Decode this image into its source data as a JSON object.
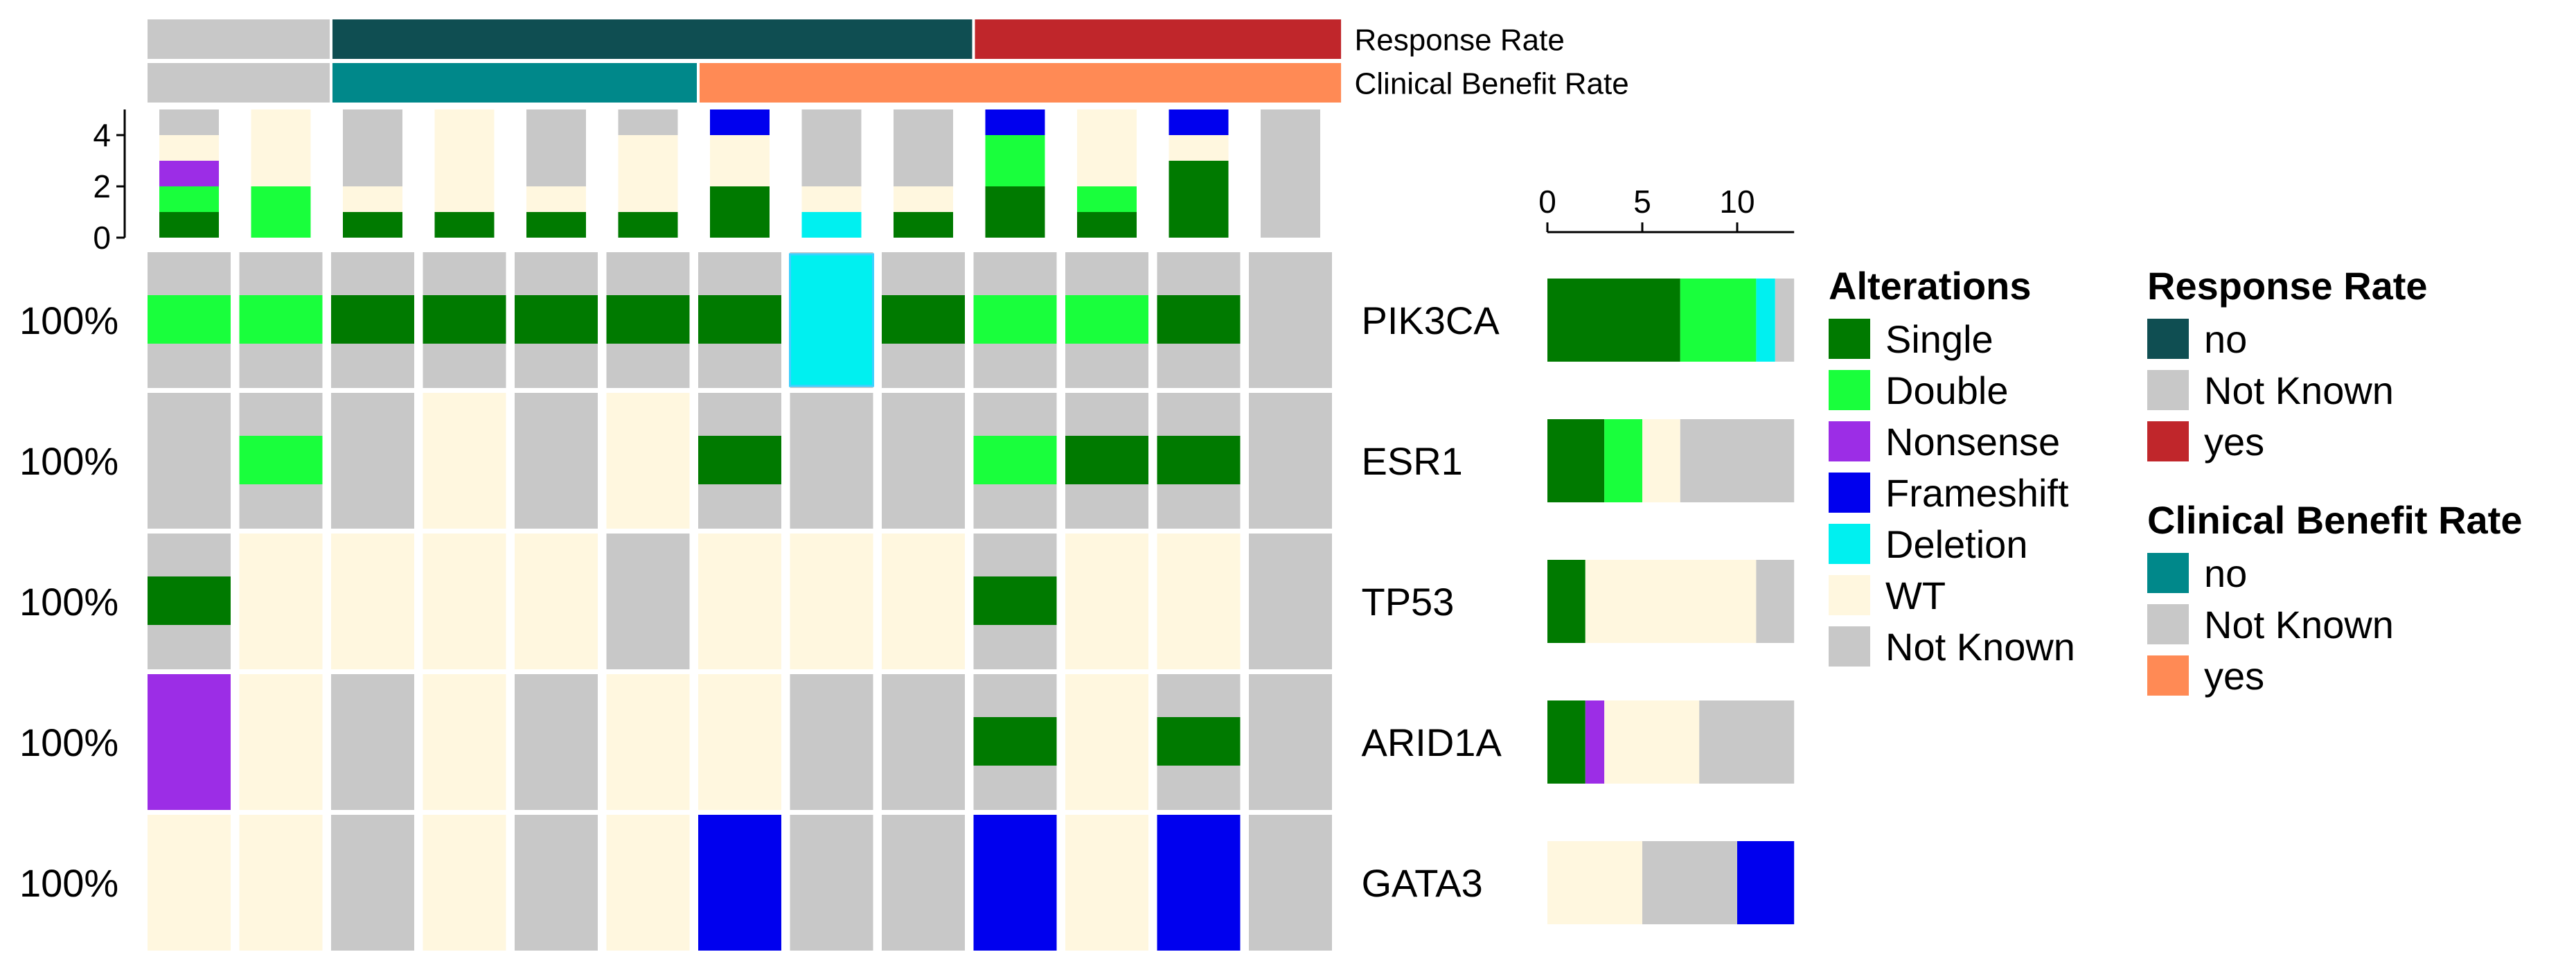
{
  "chart_data": {
    "type": "heatmap",
    "title": "",
    "genes": [
      "PIK3CA",
      "ESR1",
      "TP53",
      "ARID1A",
      "GATA3"
    ],
    "percentages": [
      "100%",
      "100%",
      "100%",
      "100%",
      "100%"
    ],
    "samples": 13,
    "matrix": [
      [
        "Double",
        "Double",
        "Single",
        "Single",
        "Single",
        "Single",
        "Single",
        "Deletion",
        "Single",
        "Double",
        "Double",
        "Single",
        "Not Known"
      ],
      [
        "Not Known",
        "Double",
        "Not Known",
        "WT",
        "Not Known",
        "WT",
        "Single",
        "Not Known",
        "Not Known",
        "Double",
        "Single",
        "Single",
        "Not Known"
      ],
      [
        "Single",
        "WT",
        "WT",
        "WT",
        "WT",
        "Not Known",
        "WT",
        "WT",
        "WT",
        "Single",
        "WT",
        "WT",
        "Not Known"
      ],
      [
        "Nonsense",
        "WT",
        "Not Known",
        "WT",
        "Not Known",
        "WT",
        "WT",
        "Not Known",
        "Not Known",
        "Single",
        "WT",
        "Single",
        "Not Known"
      ],
      [
        "WT",
        "WT",
        "Not Known",
        "WT",
        "Not Known",
        "WT",
        "Frameshift",
        "Not Known",
        "Not Known",
        "Frameshift",
        "WT",
        "Frameshift",
        "Not Known"
      ]
    ],
    "annotations": [
      {
        "name": "Response Rate",
        "values": [
          "Not Known",
          "Not Known",
          "no",
          "no",
          "no",
          "no",
          "no",
          "no",
          "no",
          "yes",
          "yes",
          "yes",
          "yes"
        ]
      },
      {
        "name": "Clinical Benefit Rate",
        "values": [
          "Not Known",
          "Not Known",
          "no",
          "no",
          "no",
          "no",
          "yes",
          "yes",
          "yes",
          "yes",
          "yes",
          "yes",
          "yes"
        ]
      }
    ],
    "top_bar": {
      "ylim": [
        0,
        5
      ],
      "ticks": [
        0,
        2,
        4
      ],
      "values": [
        {
          "Single": 1,
          "Double": 1,
          "Nonsense": 1,
          "WT": 1,
          "Not Known": 1
        },
        {
          "Double": 2,
          "WT": 3
        },
        {
          "Single": 1,
          "WT": 1,
          "Not Known": 3
        },
        {
          "Single": 1,
          "WT": 4
        },
        {
          "Single": 1,
          "WT": 1,
          "Not Known": 3
        },
        {
          "Single": 1,
          "WT": 3,
          "Not Known": 1
        },
        {
          "Single": 2,
          "WT": 2,
          "Frameshift": 1
        },
        {
          "Deletion": 1,
          "WT": 1,
          "Not Known": 3
        },
        {
          "Single": 1,
          "WT": 1,
          "Not Known": 3
        },
        {
          "Single": 2,
          "Double": 2,
          "Frameshift": 1
        },
        {
          "Single": 1,
          "Double": 1,
          "WT": 3
        },
        {
          "Single": 3,
          "WT": 1,
          "Frameshift": 1
        },
        {
          "Not Known": 5
        }
      ]
    },
    "right_bar": {
      "xlim": [
        0,
        13
      ],
      "ticks": [
        0,
        5,
        10
      ],
      "values": [
        {
          "Single": 7,
          "Double": 4,
          "Deletion": 1,
          "Not Known": 1
        },
        {
          "Single": 3,
          "Double": 2,
          "WT": 2,
          "Not Known": 6
        },
        {
          "Single": 2,
          "WT": 9,
          "Not Known": 2
        },
        {
          "Single": 2,
          "Nonsense": 1,
          "WT": 5,
          "Not Known": 5
        },
        {
          "WT": 5,
          "Not Known": 5,
          "Frameshift": 3
        }
      ]
    },
    "stack_order": [
      "Single",
      "Double",
      "Nonsense",
      "Deletion",
      "WT",
      "Not Known",
      "Frameshift"
    ],
    "legends": [
      {
        "title": "Alterations",
        "items": [
          {
            "label": "Single",
            "color": "#007a00"
          },
          {
            "label": "Double",
            "color": "#19ff3c"
          },
          {
            "label": "Nonsense",
            "color": "#9c2de6"
          },
          {
            "label": "Frameshift",
            "color": "#0000ee"
          },
          {
            "label": "Deletion",
            "color": "#00f0f0"
          },
          {
            "label": "WT",
            "color": "#fff7df"
          },
          {
            "label": "Not Known",
            "color": "#c8c8c8"
          }
        ]
      },
      {
        "title": "Response Rate",
        "items": [
          {
            "label": "no",
            "color": "#0f4e52"
          },
          {
            "label": "Not Known",
            "color": "#c8c8c8"
          },
          {
            "label": "yes",
            "color": "#c0262b"
          }
        ]
      },
      {
        "title": "Clinical Benefit Rate",
        "items": [
          {
            "label": "no",
            "color": "#00888a"
          },
          {
            "label": "Not Known",
            "color": "#c8c8c8"
          },
          {
            "label": "yes",
            "color": "#ff8a55"
          }
        ]
      }
    ]
  }
}
